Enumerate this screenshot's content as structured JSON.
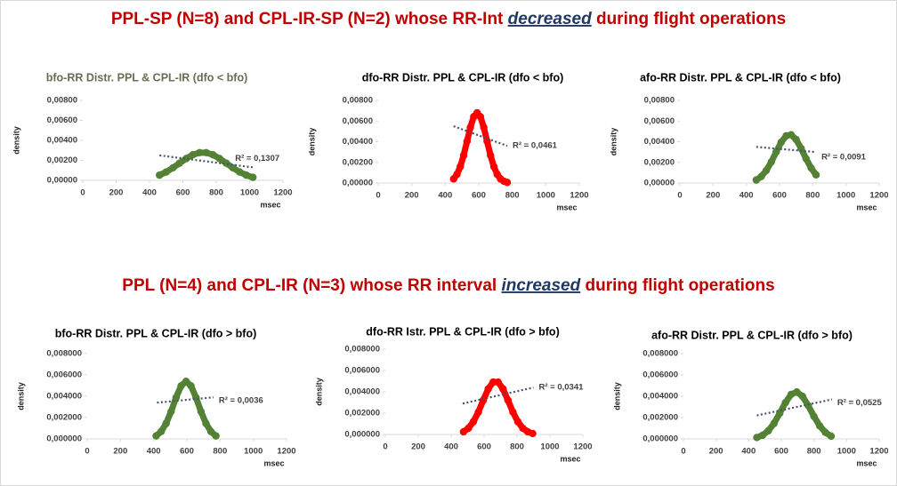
{
  "headings": [
    {
      "before": "PPL-SP (N=8) and CPL-IR-SP (N=2) whose RR-Int ",
      "emphasis": "decreased",
      "after": " during flight operations",
      "color": "#c00000",
      "emphasis_color": "#1f3864"
    },
    {
      "before": "PPL (N=4) and CPL-IR (N=3) whose RR interval ",
      "emphasis": "increased",
      "after": " during flight operations",
      "color": "#c00000",
      "emphasis_color": "#1f3864"
    }
  ],
  "chart_data": [
    {
      "type": "scatter",
      "title": "bfo-RR Distr. PPL & CPL-IR (dfo < bfo)",
      "title_color": "#6b6b55",
      "xlabel": "msec",
      "ylabel": "density",
      "xlim": [
        0,
        1200
      ],
      "xticks": [
        0,
        200,
        400,
        600,
        800,
        1000,
        1200
      ],
      "ylim": [
        0,
        0.008
      ],
      "yticks": [
        {
          "value": 0,
          "label": "0,00000"
        },
        {
          "value": 0.002,
          "label": "0,00200"
        },
        {
          "value": 0.004,
          "label": "0,00400"
        },
        {
          "value": 0.006,
          "label": "0,00600"
        },
        {
          "value": 0.008,
          "label": "0,00800"
        }
      ],
      "series": [
        {
          "color": "#548235",
          "x": [
            460,
            500,
            540,
            580,
            620,
            660,
            700,
            740,
            780,
            820,
            860,
            900,
            940,
            980,
            1020
          ],
          "values": [
            0.00052,
            0.00084,
            0.00125,
            0.00172,
            0.00218,
            0.00256,
            0.00277,
            0.00277,
            0.00256,
            0.00218,
            0.00172,
            0.00125,
            0.00084,
            0.00052,
            0.0003
          ]
        }
      ],
      "trendline": {
        "color": "#44546a",
        "x": [
          460,
          1020
        ],
        "values": [
          0.0025,
          0.0013
        ]
      },
      "annotation": "R² = 0,1307"
    },
    {
      "type": "scatter",
      "title": "dfo-RR Distr. PPL & CPL-IR (dfo < bfo)",
      "title_color": "#000000",
      "xlabel": "msec",
      "ylabel": "density",
      "xlim": [
        0,
        1200
      ],
      "xticks": [
        0,
        200,
        400,
        600,
        800,
        1000,
        1200
      ],
      "ylim": [
        0,
        0.008
      ],
      "yticks": [
        {
          "value": 0,
          "label": "0,00000"
        },
        {
          "value": 0.002,
          "label": "0,00200"
        },
        {
          "value": 0.004,
          "label": "0,00400"
        },
        {
          "value": 0.006,
          "label": "0,00600"
        },
        {
          "value": 0.008,
          "label": "0,00800"
        }
      ],
      "series": [
        {
          "color": "#ff0000",
          "x": [
            450,
            470,
            490,
            510,
            530,
            550,
            570,
            590,
            610,
            630,
            650,
            670,
            690,
            710,
            730,
            750,
            770
          ],
          "values": [
            0.0004,
            0.00084,
            0.00159,
            0.00269,
            0.00403,
            0.00539,
            0.00642,
            0.0068,
            0.00642,
            0.00539,
            0.00403,
            0.00269,
            0.00159,
            0.00084,
            0.0004,
            0.00017,
            6e-05
          ]
        }
      ],
      "trendline": {
        "color": "#44546a",
        "x": [
          450,
          770
        ],
        "values": [
          0.0055,
          0.0036
        ]
      },
      "annotation": "R² = 0,0461"
    },
    {
      "type": "scatter",
      "title": "afo-RR Distr. PPL & CPL-IR (dfo < bfo)",
      "title_color": "#000000",
      "xlabel": "msec",
      "ylabel": "density",
      "xlim": [
        0,
        1200
      ],
      "xticks": [
        0,
        200,
        400,
        600,
        800,
        1000,
        1200
      ],
      "ylim": [
        0,
        0.008
      ],
      "yticks": [
        {
          "value": 0,
          "label": "0,00000"
        },
        {
          "value": 0.002,
          "label": "0,00200"
        },
        {
          "value": 0.004,
          "label": "0,00400"
        },
        {
          "value": 0.006,
          "label": "0,00600"
        },
        {
          "value": 0.008,
          "label": "0,00800"
        }
      ],
      "series": [
        {
          "color": "#548235",
          "x": [
            460,
            490,
            520,
            550,
            580,
            610,
            640,
            670,
            700,
            730,
            760,
            790,
            820
          ],
          "values": [
            0.00029,
            0.00063,
            0.00121,
            0.00203,
            0.00301,
            0.00395,
            0.00457,
            0.00467,
            0.00421,
            0.00335,
            0.00235,
            0.00146,
            0.00079
          ]
        }
      ],
      "trendline": {
        "color": "#44546a",
        "x": [
          460,
          820
        ],
        "values": [
          0.0035,
          0.003
        ]
      },
      "annotation": "R² = 0,0091"
    },
    {
      "type": "scatter",
      "title": "bfo-RR Distr. PPL & CPL-IR (dfo > bfo)",
      "title_color": "#000000",
      "xlabel": "msec",
      "ylabel": "density",
      "xlim": [
        0,
        1200
      ],
      "xticks": [
        0,
        200,
        400,
        600,
        800,
        1000,
        1200
      ],
      "ylim": [
        0,
        0.008
      ],
      "yticks": [
        {
          "value": 0,
          "label": "0,000000"
        },
        {
          "value": 0.002,
          "label": "0,002000"
        },
        {
          "value": 0.004,
          "label": "0,004000"
        },
        {
          "value": 0.006,
          "label": "0,006000"
        },
        {
          "value": 0.008,
          "label": "0,008000"
        }
      ],
      "series": [
        {
          "color": "#548235",
          "x": [
            415,
            445,
            475,
            505,
            535,
            565,
            595,
            625,
            655,
            685,
            715,
            745,
            775
          ],
          "values": [
            0.00028,
            0.00069,
            0.00145,
            0.00257,
            0.00388,
            0.00497,
            0.0054,
            0.00497,
            0.00388,
            0.00257,
            0.00145,
            0.00069,
            0.00028
          ]
        }
      ],
      "trendline": {
        "color": "#44546a",
        "x": [
          420,
          760
        ],
        "values": [
          0.0034,
          0.0039
        ]
      },
      "annotation": "R² = 0,0036"
    },
    {
      "type": "scatter",
      "title": "dfo-RR Istr. PPL & CPL-IR (dfo > bfo)",
      "title_color": "#000000",
      "xlabel": "msec",
      "ylabel": "density",
      "xlim": [
        0,
        1200
      ],
      "xticks": [
        0,
        200,
        400,
        600,
        800,
        1000,
        1200
      ],
      "ylim": [
        0,
        0.008
      ],
      "yticks": [
        {
          "value": 0,
          "label": "0,000000"
        },
        {
          "value": 0.002,
          "label": "0,002000"
        },
        {
          "value": 0.004,
          "label": "0,004000"
        },
        {
          "value": 0.006,
          "label": "0,006000"
        },
        {
          "value": 0.008,
          "label": "0,008000"
        }
      ],
      "series": [
        {
          "color": "#ff0000",
          "x": [
            475,
            505,
            535,
            565,
            595,
            625,
            655,
            685,
            715,
            745,
            775,
            805,
            835,
            865,
            895
          ],
          "values": [
            0.00025,
            0.00059,
            0.0012,
            0.0021,
            0.00321,
            0.00427,
            0.00491,
            0.00491,
            0.00427,
            0.00321,
            0.0021,
            0.0012,
            0.00059,
            0.00025,
            9e-05
          ]
        }
      ],
      "trendline": {
        "color": "#44546a",
        "x": [
          470,
          900
        ],
        "values": [
          0.0029,
          0.0044
        ]
      },
      "annotation": "R² = 0,0341"
    },
    {
      "type": "scatter",
      "title": "afo-RR Distr. PPL & CPL-IR (dfo > bfo)",
      "title_color": "#000000",
      "xlabel": "msec",
      "ylabel": "density",
      "xlim": [
        0,
        1200
      ],
      "xticks": [
        0,
        200,
        400,
        600,
        800,
        1000,
        1200
      ],
      "ylim": [
        0,
        0.008
      ],
      "yticks": [
        {
          "value": 0,
          "label": "0,000000"
        },
        {
          "value": 0.002,
          "label": "0,002000"
        },
        {
          "value": 0.004,
          "label": "0,004000"
        },
        {
          "value": 0.006,
          "label": "0,006000"
        },
        {
          "value": 0.008,
          "label": "0,008000"
        }
      ],
      "series": [
        {
          "color": "#548235",
          "x": [
            450,
            485,
            520,
            555,
            590,
            625,
            660,
            695,
            730,
            765,
            800,
            835,
            870,
            905
          ],
          "values": [
            0.00013,
            0.00034,
            0.00076,
            0.00145,
            0.0024,
            0.0034,
            0.00417,
            0.0044,
            0.00399,
            0.00313,
            0.00211,
            0.00123,
            0.00061,
            0.00026
          ]
        }
      ],
      "trendline": {
        "color": "#44546a",
        "x": [
          450,
          910
        ],
        "values": [
          0.0022,
          0.0037
        ]
      },
      "annotation": "R² = 0,0525"
    }
  ]
}
